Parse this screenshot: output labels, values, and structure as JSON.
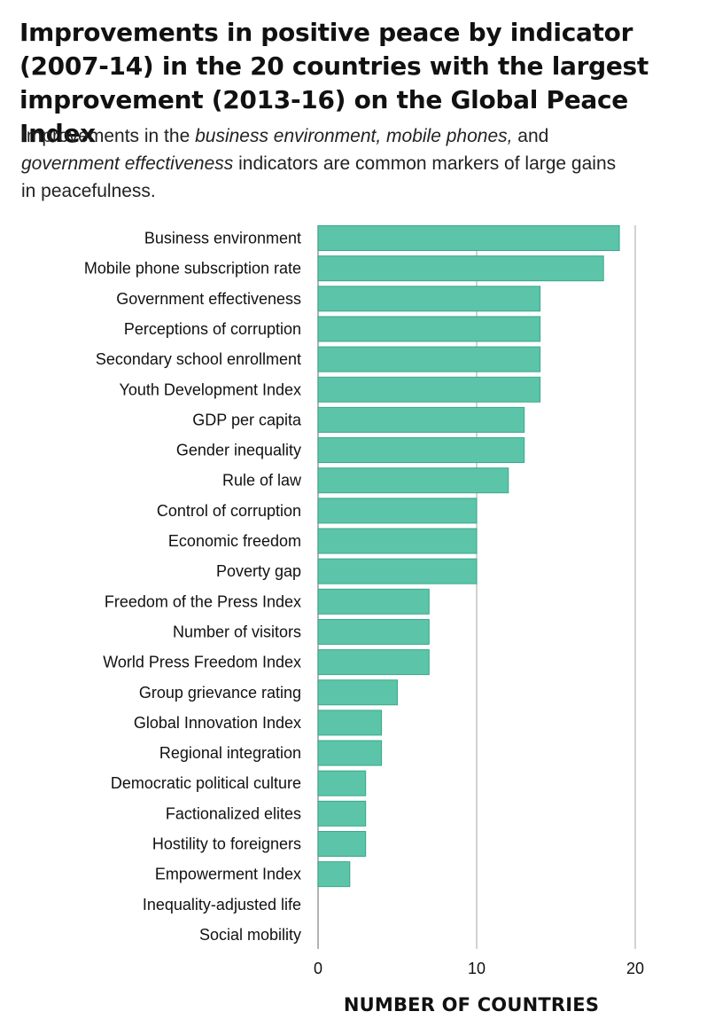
{
  "chart_data": {
    "type": "bar",
    "orientation": "horizontal",
    "title": "Improvements in positive peace by indicator (2007-14) in the 20 countries with the largest improvement (2013-16) on the Global Peace Index",
    "subtitle": {
      "parts": [
        {
          "text": "Improvements in the ",
          "italic": false
        },
        {
          "text": "business environment, mobile phones,",
          "italic": true
        },
        {
          "text": " and ",
          "italic": false
        },
        {
          "text": "government effectiveness",
          "italic": true
        },
        {
          "text": " indicators are common markers of large gains in peacefulness.",
          "italic": false
        }
      ]
    },
    "categories": [
      "Business environment",
      "Mobile phone subscription rate",
      "Government effectiveness",
      "Perceptions of corruption",
      "Secondary school enrollment",
      "Youth Development Index",
      "GDP per capita",
      "Gender inequality",
      "Rule of law",
      "Control of corruption",
      "Economic freedom",
      "Poverty gap",
      "Freedom of the Press Index",
      "Number of visitors",
      "World Press Freedom Index",
      "Group grievance rating",
      "Global Innovation Index",
      "Regional integration",
      "Democratic political culture",
      "Factionalized elites",
      "Hostility to foreigners",
      "Empowerment Index",
      "Inequality-adjusted life",
      "Social mobility"
    ],
    "values": [
      19,
      18,
      14,
      14,
      14,
      14,
      13,
      13,
      12,
      10,
      10,
      10,
      7,
      7,
      7,
      5,
      4,
      4,
      3,
      3,
      3,
      2,
      0,
      0
    ],
    "xlabel": "NUMBER OF COUNTRIES",
    "xlim": [
      0,
      20
    ],
    "xticks": [
      0,
      10,
      20
    ],
    "grid": "vertical",
    "bar_color": "#5cc4a8",
    "bar_edge_color": "#3aa88a",
    "grid_color": "#b5b5b5"
  }
}
